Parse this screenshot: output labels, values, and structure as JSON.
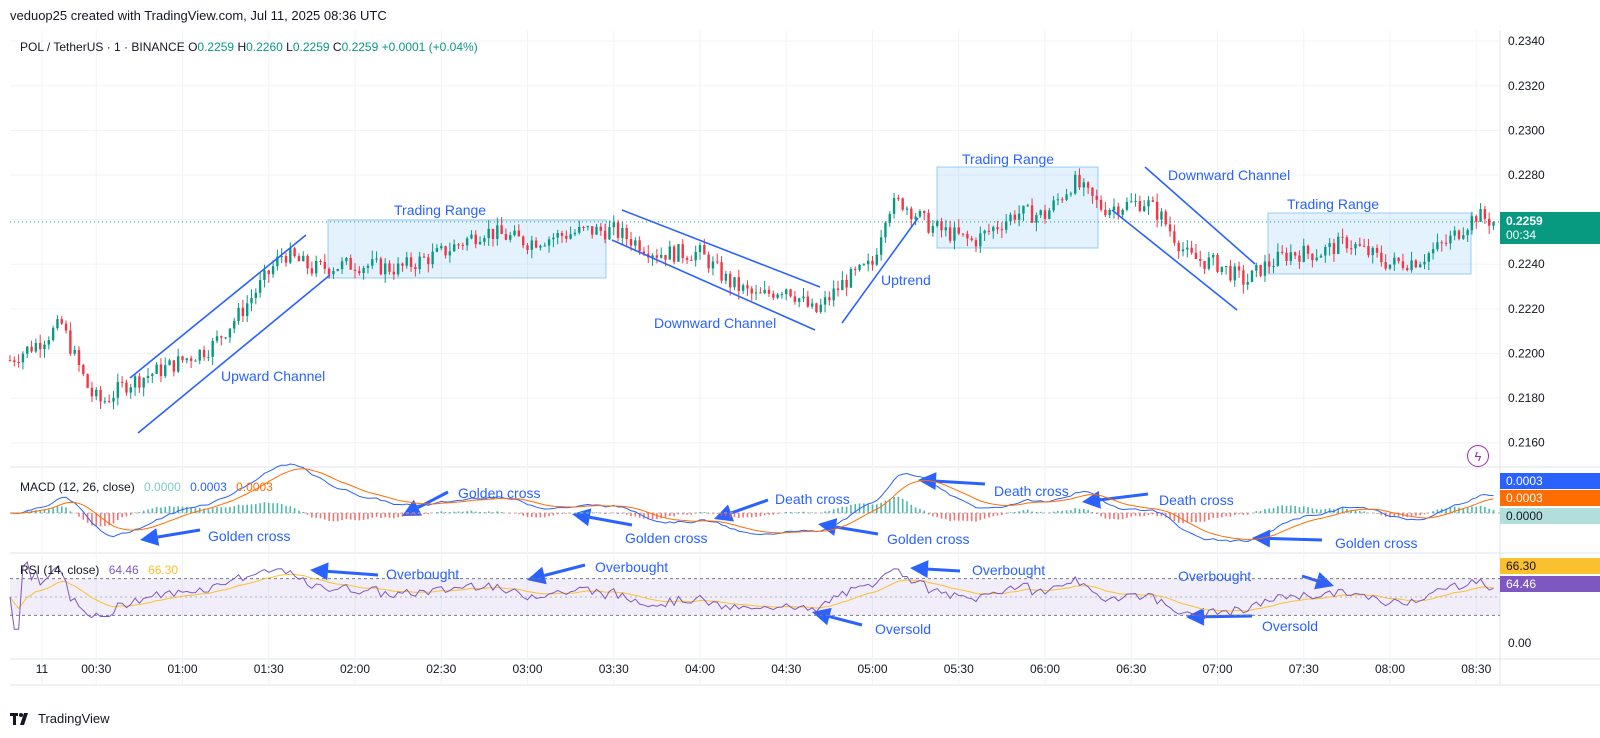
{
  "header": {
    "creator_line": "veduop25 created with TradingView.com, Jul 11, 2025 08:36 UTC"
  },
  "footer": {
    "brand": "TradingView"
  },
  "symbol": {
    "title": "POL / TetherUS · 1 · BINANCE",
    "o_label": "O",
    "o": "0.2259",
    "h_label": "H",
    "h": "0.2260",
    "l_label": "L",
    "l": "0.2259",
    "c_label": "C",
    "c": "0.2259",
    "change": "+0.0001 (+0.04%)"
  },
  "price_axis": {
    "ticks": [
      "0.2340",
      "0.2320",
      "0.2300",
      "0.2280",
      "0.2260",
      "0.2240",
      "0.2220",
      "0.2200",
      "0.2180",
      "0.2160"
    ],
    "last_price": "0.2259",
    "countdown": "00:34"
  },
  "time_axis": {
    "ticks": [
      "11",
      "00:30",
      "01:00",
      "01:30",
      "02:00",
      "02:30",
      "03:00",
      "03:30",
      "04:00",
      "04:30",
      "05:00",
      "05:30",
      "06:00",
      "06:30",
      "07:00",
      "07:30",
      "08:00",
      "08:30"
    ]
  },
  "macd": {
    "title": "MACD (12, 26, close)",
    "hist": "0.0000",
    "macd": "0.0003",
    "signal": "0.0003",
    "tag_macd": "0.0003",
    "tag_signal": "0.0003",
    "tag_hist": "0.0000"
  },
  "rsi": {
    "title": "RSI (14, close)",
    "rsi": "64.46",
    "ma": "66.30",
    "tag_ma": "66.30",
    "tag_rsi": "64.46",
    "axis_zero": "0.00"
  },
  "annotations": {
    "upward_channel": "Upward Channel",
    "trading_range_1": "Trading Range",
    "downward_channel_1": "Downward Channel",
    "uptrend": "Uptrend",
    "trading_range_2": "Trading Range",
    "downward_channel_2": "Downward Channel",
    "trading_range_3": "Trading Range",
    "macd_golden_1": "Golden cross",
    "macd_golden_2": "Golden cross",
    "macd_golden_3": "Golden cross",
    "macd_death_1": "Death cross",
    "macd_golden_4": "Golden cross",
    "macd_death_2": "Death cross",
    "macd_death_3": "Death cross",
    "macd_golden_5": "Golden cross",
    "rsi_overbought_1": "Overbought",
    "rsi_overbought_2": "Overbought",
    "rsi_overbought_3": "Overbought",
    "rsi_oversold_1": "Oversold",
    "rsi_overbought_4": "Overbought",
    "rsi_oversold_2": "Oversold"
  },
  "colors": {
    "up": "#089981",
    "down": "#f23645",
    "annotation": "#2962ff",
    "macd_line": "#2962ff",
    "signal_line": "#ff6d00",
    "rsi_line": "#7e57c2",
    "rsi_ma": "#fbc02d",
    "last_price_bg": "#089981"
  },
  "chart_data": {
    "type": "candlestick",
    "title": "POL / TetherUS · 1 · BINANCE",
    "ylim": [
      0.215,
      0.2345
    ],
    "x_range": [
      "00:00",
      "08:36"
    ],
    "anchors": [
      {
        "t": "00:00",
        "p": 0.2197
      },
      {
        "t": "00:10",
        "p": 0.2205
      },
      {
        "t": "00:18",
        "p": 0.2213
      },
      {
        "t": "00:22",
        "p": 0.22
      },
      {
        "t": "00:28",
        "p": 0.2182
      },
      {
        "t": "00:32",
        "p": 0.2178
      },
      {
        "t": "00:40",
        "p": 0.2186
      },
      {
        "t": "00:55",
        "p": 0.2194
      },
      {
        "t": "01:10",
        "p": 0.2203
      },
      {
        "t": "01:20",
        "p": 0.2218
      },
      {
        "t": "01:30",
        "p": 0.2236
      },
      {
        "t": "01:35",
        "p": 0.2245
      },
      {
        "t": "01:45",
        "p": 0.2238
      },
      {
        "t": "02:00",
        "p": 0.224
      },
      {
        "t": "02:15",
        "p": 0.2238
      },
      {
        "t": "02:30",
        "p": 0.2245
      },
      {
        "t": "02:45",
        "p": 0.2255
      },
      {
        "t": "03:00",
        "p": 0.225
      },
      {
        "t": "03:20",
        "p": 0.2255
      },
      {
        "t": "03:30",
        "p": 0.2255
      },
      {
        "t": "03:45",
        "p": 0.2245
      },
      {
        "t": "04:00",
        "p": 0.2245
      },
      {
        "t": "04:10",
        "p": 0.2232
      },
      {
        "t": "04:20",
        "p": 0.2225
      },
      {
        "t": "04:30",
        "p": 0.223
      },
      {
        "t": "04:40",
        "p": 0.2218
      },
      {
        "t": "04:50",
        "p": 0.2232
      },
      {
        "t": "05:00",
        "p": 0.224
      },
      {
        "t": "05:05",
        "p": 0.2265
      },
      {
        "t": "05:10",
        "p": 0.2268
      },
      {
        "t": "05:20",
        "p": 0.2257
      },
      {
        "t": "05:35",
        "p": 0.225
      },
      {
        "t": "05:50",
        "p": 0.2263
      },
      {
        "t": "06:00",
        "p": 0.2262
      },
      {
        "t": "06:10",
        "p": 0.2277
      },
      {
        "t": "06:20",
        "p": 0.2265
      },
      {
        "t": "06:35",
        "p": 0.2268
      },
      {
        "t": "06:40",
        "p": 0.2262
      },
      {
        "t": "06:50",
        "p": 0.2243
      },
      {
        "t": "07:00",
        "p": 0.224
      },
      {
        "t": "07:10",
        "p": 0.2232
      },
      {
        "t": "07:15",
        "p": 0.2238
      },
      {
        "t": "07:25",
        "p": 0.2245
      },
      {
        "t": "07:35",
        "p": 0.2245
      },
      {
        "t": "07:45",
        "p": 0.225
      },
      {
        "t": "08:00",
        "p": 0.224
      },
      {
        "t": "08:10",
        "p": 0.2242
      },
      {
        "t": "08:20",
        "p": 0.225
      },
      {
        "t": "08:30",
        "p": 0.2262
      },
      {
        "t": "08:36",
        "p": 0.2259
      }
    ],
    "last_close": 0.2259,
    "macd": {
      "ylim": [
        -0.0009,
        0.001
      ],
      "current": 0.0003,
      "signal": 0.0003,
      "hist": 0.0
    },
    "rsi": {
      "ylim": [
        0,
        100
      ],
      "overbought": 70,
      "oversold": 30,
      "current": 64.46,
      "ma": 66.3
    }
  }
}
